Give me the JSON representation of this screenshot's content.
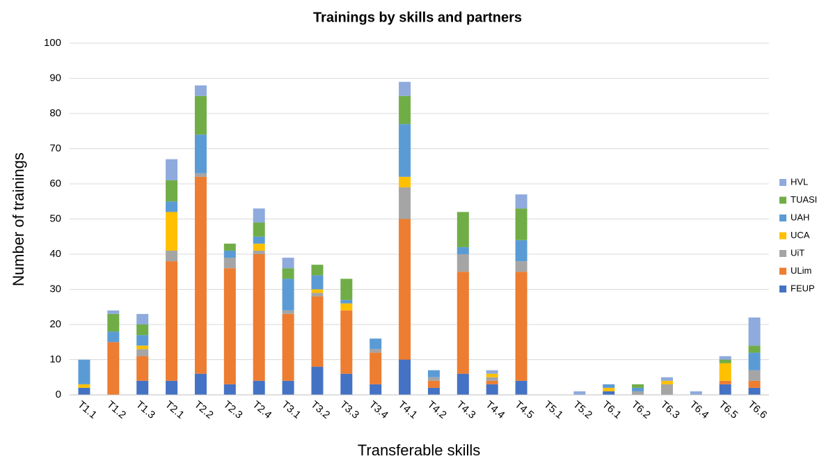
{
  "chart_data": {
    "type": "stacked_bar",
    "title": "Trainings by skills and partners",
    "x_label": "Transferable skills",
    "y_label": "Number of trainings",
    "categories": [
      "T1.1",
      "T1.2",
      "T1.3",
      "T2.1",
      "T2.2",
      "T2.3",
      "T2.4",
      "T3.1",
      "T3.2",
      "T3.3",
      "T3.4",
      "T4.1",
      "T4.2",
      "T4.3",
      "T4.4",
      "T4.5",
      "T5.1",
      "T5.2",
      "T6.1",
      "T6.2",
      "T6.3",
      "T6.4",
      "T6.5",
      "T6.6"
    ],
    "series": [
      {
        "name": "FEUP",
        "color": "#4472c4",
        "values": [
          2,
          0,
          4,
          4,
          6,
          3,
          4,
          4,
          8,
          6,
          3,
          10,
          2,
          6,
          3,
          4,
          0,
          0,
          1,
          0,
          0,
          0,
          3,
          2
        ]
      },
      {
        "name": "ULim",
        "color": "#ed7d31",
        "values": [
          0,
          15,
          7,
          34,
          56,
          33,
          36,
          19,
          20,
          18,
          9,
          40,
          2,
          29,
          1,
          31,
          0,
          0,
          0,
          0,
          0,
          0,
          1,
          2
        ]
      },
      {
        "name": "UiT",
        "color": "#a5a5a5",
        "values": [
          0,
          0,
          2,
          3,
          1,
          3,
          1,
          1,
          1,
          0,
          1,
          9,
          1,
          5,
          1,
          3,
          0,
          0,
          0,
          1,
          3,
          0,
          0,
          3
        ]
      },
      {
        "name": "UCA",
        "color": "#ffc000",
        "values": [
          1,
          0,
          1,
          11,
          0,
          0,
          2,
          0,
          1,
          2,
          0,
          3,
          0,
          0,
          1,
          0,
          0,
          0,
          1,
          0,
          1,
          0,
          5,
          0
        ]
      },
      {
        "name": "UAH",
        "color": "#5b9bd5",
        "values": [
          7,
          3,
          3,
          3,
          11,
          2,
          2,
          9,
          4,
          1,
          3,
          15,
          2,
          2,
          0,
          6,
          0,
          0,
          1,
          1,
          0,
          0,
          0,
          5
        ]
      },
      {
        "name": "TUASI",
        "color": "#70ad47",
        "values": [
          0,
          5,
          3,
          6,
          11,
          2,
          4,
          3,
          3,
          6,
          0,
          8,
          0,
          10,
          0,
          9,
          0,
          0,
          0,
          1,
          0,
          0,
          1,
          2
        ]
      },
      {
        "name": "HVL",
        "color": "#8faadc",
        "values": [
          0,
          1,
          3,
          6,
          3,
          0,
          4,
          3,
          0,
          0,
          0,
          4,
          0,
          0,
          1,
          4,
          0,
          1,
          0,
          0,
          1,
          1,
          1,
          8
        ]
      }
    ],
    "ylim": [
      0,
      100
    ],
    "yticks": [
      0,
      10,
      20,
      30,
      40,
      50,
      60,
      70,
      80,
      90,
      100
    ],
    "grid": true,
    "legend": "right"
  }
}
